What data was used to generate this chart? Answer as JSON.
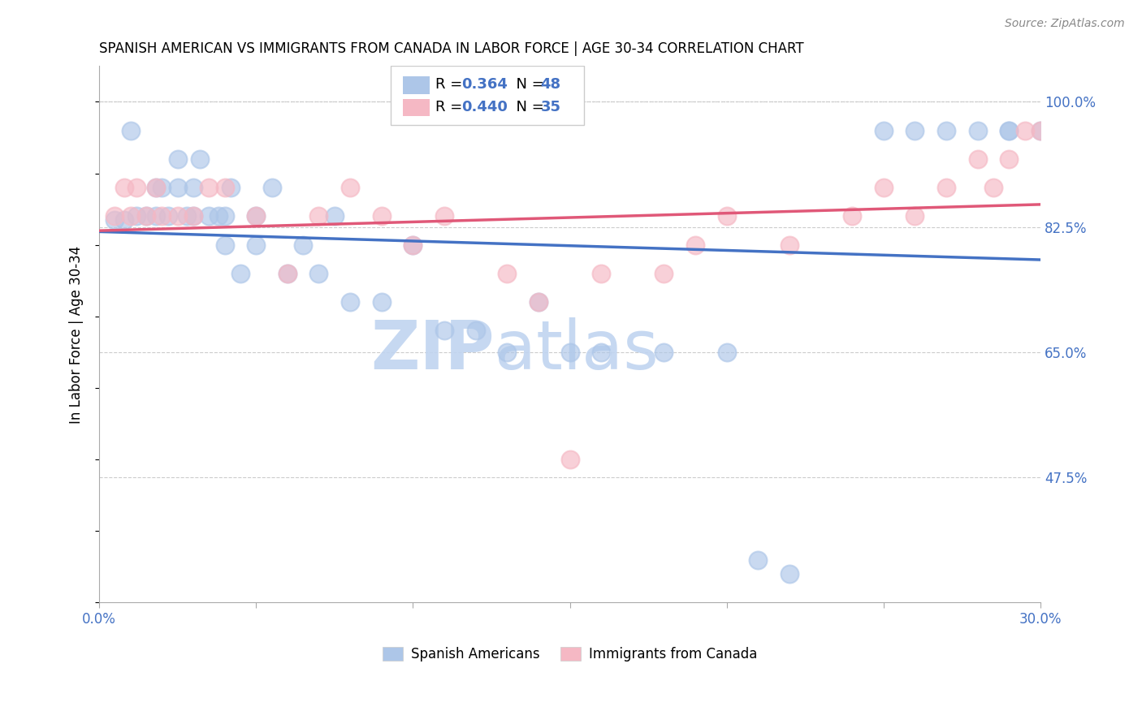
{
  "title": "SPANISH AMERICAN VS IMMIGRANTS FROM CANADA IN LABOR FORCE | AGE 30-34 CORRELATION CHART",
  "source": "Source: ZipAtlas.com",
  "ylabel": "In Labor Force | Age 30-34",
  "xlim": [
    0.0,
    0.3
  ],
  "ylim": [
    0.3,
    1.05
  ],
  "xticks": [
    0.0,
    0.05,
    0.1,
    0.15,
    0.2,
    0.25,
    0.3
  ],
  "xticklabels": [
    "0.0%",
    "",
    "",
    "",
    "",
    "",
    "30.0%"
  ],
  "ytick_positions": [
    0.475,
    0.65,
    0.825,
    1.0
  ],
  "ytick_labels": [
    "47.5%",
    "65.0%",
    "82.5%",
    "100.0%"
  ],
  "r_blue": 0.364,
  "n_blue": 48,
  "r_pink": 0.44,
  "n_pink": 35,
  "blue_color": "#adc6e8",
  "pink_color": "#f5b8c4",
  "trend_blue": "#4472c4",
  "trend_pink": "#e05878",
  "blue_scatter_x": [
    0.005,
    0.008,
    0.01,
    0.012,
    0.015,
    0.018,
    0.018,
    0.02,
    0.022,
    0.025,
    0.025,
    0.028,
    0.03,
    0.03,
    0.032,
    0.035,
    0.038,
    0.04,
    0.04,
    0.042,
    0.045,
    0.05,
    0.05,
    0.055,
    0.06,
    0.065,
    0.07,
    0.075,
    0.08,
    0.09,
    0.1,
    0.11,
    0.12,
    0.13,
    0.14,
    0.15,
    0.16,
    0.18,
    0.2,
    0.21,
    0.22,
    0.25,
    0.26,
    0.27,
    0.28,
    0.29,
    0.29,
    0.3
  ],
  "blue_scatter_y": [
    0.835,
    0.835,
    0.96,
    0.84,
    0.84,
    0.88,
    0.84,
    0.88,
    0.84,
    0.92,
    0.88,
    0.84,
    0.88,
    0.84,
    0.92,
    0.84,
    0.84,
    0.84,
    0.8,
    0.88,
    0.76,
    0.8,
    0.84,
    0.88,
    0.76,
    0.8,
    0.76,
    0.84,
    0.72,
    0.72,
    0.8,
    0.68,
    0.68,
    0.65,
    0.72,
    0.65,
    0.65,
    0.65,
    0.65,
    0.36,
    0.34,
    0.96,
    0.96,
    0.96,
    0.96,
    0.96,
    0.96,
    0.96
  ],
  "pink_scatter_x": [
    0.005,
    0.008,
    0.01,
    0.012,
    0.015,
    0.018,
    0.02,
    0.025,
    0.03,
    0.035,
    0.04,
    0.05,
    0.06,
    0.07,
    0.08,
    0.09,
    0.1,
    0.11,
    0.13,
    0.14,
    0.15,
    0.16,
    0.18,
    0.19,
    0.2,
    0.22,
    0.24,
    0.25,
    0.26,
    0.27,
    0.28,
    0.285,
    0.29,
    0.295,
    0.3
  ],
  "pink_scatter_y": [
    0.84,
    0.88,
    0.84,
    0.88,
    0.84,
    0.88,
    0.84,
    0.84,
    0.84,
    0.88,
    0.88,
    0.84,
    0.76,
    0.84,
    0.88,
    0.84,
    0.8,
    0.84,
    0.76,
    0.72,
    0.5,
    0.76,
    0.76,
    0.8,
    0.84,
    0.8,
    0.84,
    0.88,
    0.84,
    0.88,
    0.92,
    0.88,
    0.92,
    0.96,
    0.96
  ],
  "legend_label_blue": "Spanish Americans",
  "legend_label_pink": "Immigrants from Canada",
  "background_color": "#ffffff",
  "watermark_zip": "ZIP",
  "watermark_atlas": "atlas",
  "watermark_color_zip": "#c8d8f0",
  "watermark_color_atlas": "#c8d8f0",
  "grid_color": "#cccccc",
  "top_line_y": 1.0
}
